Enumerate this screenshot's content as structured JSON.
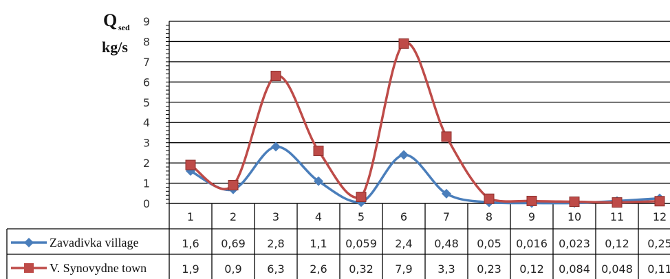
{
  "chart_data": {
    "type": "line",
    "ylabel": {
      "main": "Q",
      "sub": "sed",
      "unit": "kg/s"
    },
    "categories": [
      "1",
      "2",
      "3",
      "4",
      "5",
      "6",
      "7",
      "8",
      "9",
      "10",
      "11",
      "12"
    ],
    "ylim": [
      0,
      9
    ],
    "yticks": [
      "0",
      "1",
      "2",
      "3",
      "4",
      "5",
      "6",
      "7",
      "8",
      "9"
    ],
    "grid": true,
    "legend": "data-table",
    "series": [
      {
        "name": "Zavadivka village",
        "color": "#4a7ebb",
        "marker": "diamond",
        "values": [
          1.6,
          0.69,
          2.8,
          1.1,
          0.059,
          2.4,
          0.48,
          0.05,
          0.016,
          0.023,
          0.12,
          0.25
        ],
        "labels": [
          "1,6",
          "0,69",
          "2,8",
          "1,1",
          "0,059",
          "2,4",
          "0,48",
          "0,05",
          "0,016",
          "0,023",
          "0,12",
          "0,25"
        ]
      },
      {
        "name": "V. Synovydne town",
        "color": "#be4b48",
        "marker": "square",
        "values": [
          1.9,
          0.9,
          6.3,
          2.6,
          0.32,
          7.9,
          3.3,
          0.23,
          0.12,
          0.084,
          0.048,
          0.11
        ],
        "labels": [
          "1,9",
          "0,9",
          "6,3",
          "2,6",
          "0,32",
          "7,9",
          "3,3",
          "0,23",
          "0,12",
          "0,084",
          "0,048",
          "0,11"
        ]
      }
    ]
  }
}
